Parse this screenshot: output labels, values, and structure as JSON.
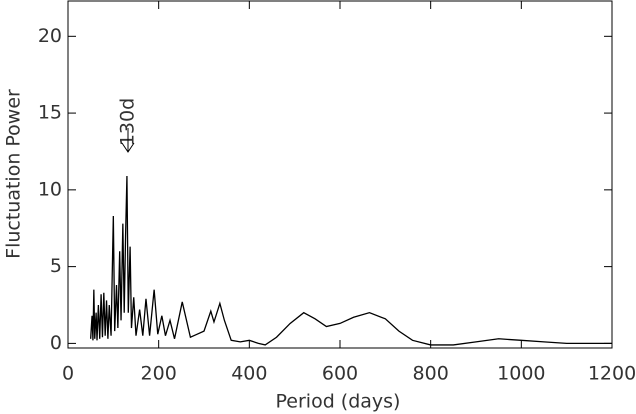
{
  "chart_data": {
    "type": "line",
    "xlabel": "Period (days)",
    "ylabel": "Fluctuation Power",
    "annotation": "130d",
    "color": "#000000",
    "x": [
      50,
      53,
      55,
      57,
      59,
      62,
      64,
      67,
      70,
      73,
      76,
      79,
      82,
      85,
      88,
      91,
      95,
      100,
      103,
      107,
      110,
      114,
      117,
      121,
      124,
      127,
      130,
      133,
      137,
      140,
      145,
      150,
      158,
      165,
      172,
      180,
      190,
      198,
      207,
      215,
      225,
      235,
      252,
      270,
      285,
      300,
      315,
      322,
      335,
      345,
      360,
      380,
      400,
      420,
      435,
      460,
      490,
      520,
      545,
      570,
      600,
      630,
      665,
      700,
      730,
      760,
      800,
      850,
      900,
      950,
      1000,
      1050,
      1100,
      1150,
      1200
    ],
    "values": [
      0.3,
      1.8,
      0.2,
      3.5,
      0.3,
      2.0,
      0.2,
      2.5,
      0.3,
      3.2,
      0.4,
      3.3,
      0.5,
      2.8,
      0.3,
      2.5,
      0.5,
      8.3,
      0.8,
      3.8,
      1.0,
      6.0,
      1.5,
      7.8,
      2.0,
      7.0,
      10.9,
      2.0,
      6.3,
      1.0,
      3.0,
      0.5,
      2.2,
      0.5,
      2.9,
      0.5,
      3.5,
      0.6,
      1.8,
      0.5,
      1.5,
      0.3,
      2.7,
      0.4,
      0.6,
      0.8,
      2.1,
      1.4,
      2.6,
      1.5,
      0.2,
      0.1,
      0.2,
      0,
      -0.1,
      0.4,
      1.3,
      2.0,
      1.6,
      1.1,
      1.3,
      1.7,
      2.0,
      1.6,
      0.8,
      0.2,
      -0.1,
      -0.1,
      0.1,
      0.3,
      0.2,
      0.1,
      0.0,
      0.0,
      0.0
    ],
    "xlim": [
      0,
      1200
    ],
    "xticks": [
      0,
      200,
      400,
      600,
      800,
      1000,
      1200
    ],
    "ylim": [
      -0.3,
      22.3
    ],
    "yticks": [
      0,
      5,
      10,
      15,
      20
    ]
  }
}
